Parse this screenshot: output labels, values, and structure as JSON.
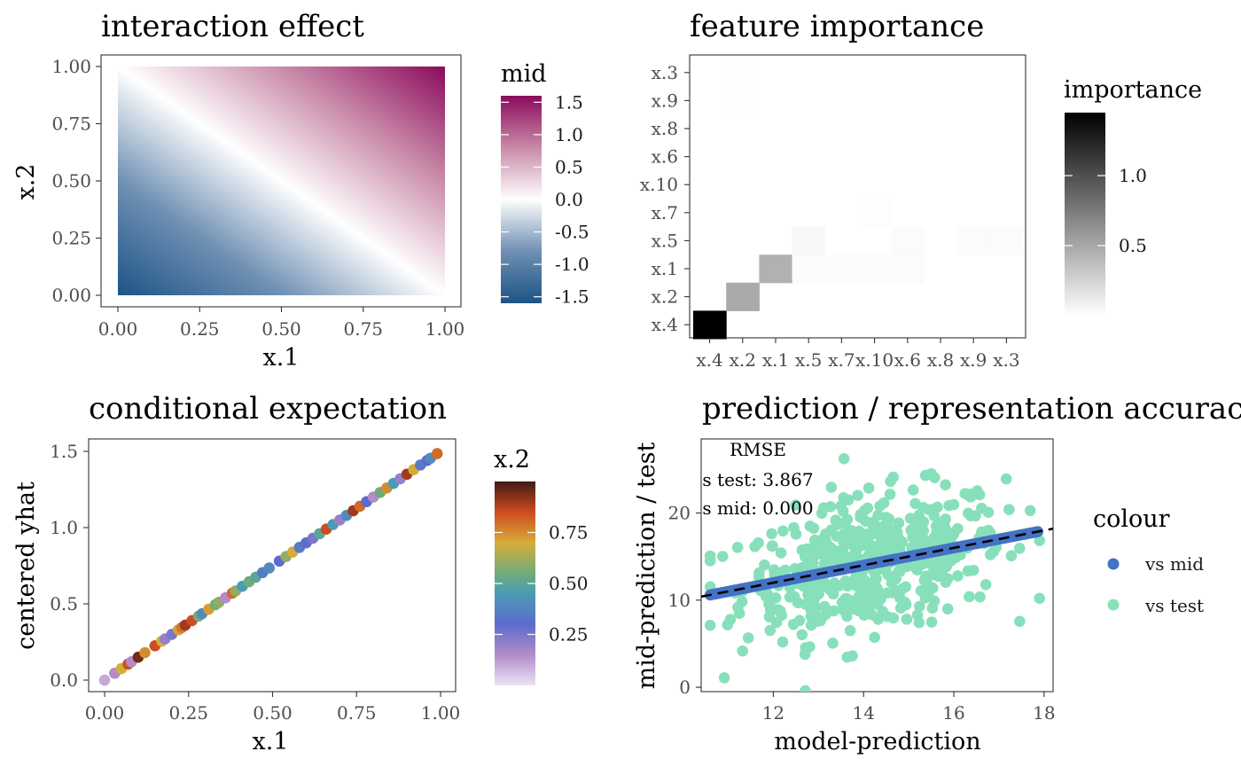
{
  "chart_data": [
    {
      "type": "heatmap",
      "title": "interaction effect",
      "xlabel": "x.1",
      "ylabel": "x.2",
      "xlim": [
        0,
        1
      ],
      "ylim": [
        0,
        1
      ],
      "x_ticks": [
        "0.00",
        "0.25",
        "0.50",
        "0.75",
        "1.00"
      ],
      "y_ticks": [
        "0.00",
        "0.25",
        "0.50",
        "0.75",
        "1.00"
      ],
      "value_formula": "mid = x.1 + x.2 - 1 (approximately, ranging -1.6 to 1.6)",
      "value_range": [
        -1.6,
        1.6
      ],
      "legend": {
        "title": "mid",
        "ticks": [
          "1.5",
          "1.0",
          "0.5",
          "0.0",
          "-0.5",
          "-1.0",
          "-1.5"
        ],
        "tick_values": [
          1.5,
          1.0,
          0.5,
          0.0,
          -0.5,
          -1.0,
          -1.5
        ],
        "colors": {
          "low": "#1d5486",
          "mid": "#ffffff",
          "high": "#8b0a5c"
        }
      }
    },
    {
      "type": "heatmap",
      "title": "feature importance",
      "x_categories": [
        "x.4",
        "x.2",
        "x.1",
        "x.5",
        "x.7",
        "x.10",
        "x.6",
        "x.8",
        "x.9",
        "x.3"
      ],
      "y_categories": [
        "x.4",
        "x.2",
        "x.1",
        "x.5",
        "x.7",
        "x.10",
        "x.6",
        "x.8",
        "x.9",
        "x.3"
      ],
      "cells": [
        {
          "x": "x.4",
          "y": "x.4",
          "value": 1.45
        },
        {
          "x": "x.2",
          "y": "x.2",
          "value": 0.4
        },
        {
          "x": "x.1",
          "y": "x.1",
          "value": 0.36
        },
        {
          "x": "x.5",
          "y": "x.5",
          "value": 0.02
        },
        {
          "x": "x.10",
          "y": "x.1",
          "value": 0.01
        },
        {
          "x": "x.7",
          "y": "x.1",
          "value": 0.01
        },
        {
          "x": "x.5",
          "y": "x.1",
          "value": 0.01
        },
        {
          "x": "x.6",
          "y": "x.1",
          "value": 0.01
        },
        {
          "x": "x.6",
          "y": "x.5",
          "value": 0.01
        },
        {
          "x": "x.9",
          "y": "x.5",
          "value": 0.01
        },
        {
          "x": "x.3",
          "y": "x.5",
          "value": 0.01
        },
        {
          "x": "x.2",
          "y": "x.9",
          "value": 0.005
        },
        {
          "x": "x.2",
          "y": "x.3",
          "value": 0.005
        },
        {
          "x": "x.10",
          "y": "x.7",
          "value": 0.005
        }
      ],
      "legend": {
        "title": "importance",
        "ticks": [
          "1.0",
          "0.5"
        ],
        "tick_values": [
          1.0,
          0.5
        ],
        "range": [
          0,
          1.45
        ],
        "colors": {
          "low": "#ffffff",
          "high": "#000000"
        }
      }
    },
    {
      "type": "scatter",
      "title": "conditional expectation",
      "xlabel": "x.1",
      "ylabel": "centered yhat",
      "xlim": [
        0,
        1
      ],
      "ylim": [
        0,
        1.5
      ],
      "x_ticks": [
        "0.00",
        "0.25",
        "0.50",
        "0.75",
        "1.00"
      ],
      "y_ticks": [
        "0.0",
        "0.5",
        "1.0",
        "1.5"
      ],
      "relation": "y = 1.5 * x.1 (points lie on a line, colored by x.2)",
      "points_x": [
        0.0,
        0.03,
        0.05,
        0.07,
        0.08,
        0.1,
        0.12,
        0.15,
        0.17,
        0.18,
        0.2,
        0.22,
        0.23,
        0.24,
        0.26,
        0.28,
        0.29,
        0.31,
        0.33,
        0.34,
        0.36,
        0.38,
        0.39,
        0.41,
        0.43,
        0.45,
        0.47,
        0.49,
        0.52,
        0.54,
        0.56,
        0.58,
        0.6,
        0.62,
        0.64,
        0.66,
        0.68,
        0.7,
        0.72,
        0.74,
        0.76,
        0.78,
        0.8,
        0.82,
        0.84,
        0.86,
        0.88,
        0.9,
        0.92,
        0.94,
        0.96,
        0.97,
        0.99
      ],
      "points_color_value": [
        0.1,
        0.15,
        0.7,
        0.85,
        0.15,
        0.95,
        0.75,
        0.85,
        0.7,
        0.2,
        0.25,
        0.72,
        0.78,
        0.9,
        0.85,
        0.55,
        0.4,
        0.72,
        0.55,
        0.6,
        0.15,
        0.8,
        0.6,
        0.45,
        0.55,
        0.5,
        0.35,
        0.4,
        0.3,
        0.6,
        0.7,
        0.35,
        0.3,
        0.25,
        0.5,
        0.85,
        0.45,
        0.2,
        0.4,
        0.9,
        0.8,
        0.3,
        0.15,
        0.55,
        0.75,
        0.45,
        0.2,
        0.9,
        0.7,
        0.35,
        0.3,
        0.4,
        0.8
      ],
      "legend": {
        "title": "x.2",
        "ticks": [
          "0.75",
          "0.50",
          "0.25"
        ],
        "tick_values": [
          0.75,
          0.5,
          0.25
        ],
        "range": [
          0,
          1
        ]
      }
    },
    {
      "type": "scatter",
      "title": "prediction / representation accuracy",
      "xlabel": "model-prediction",
      "ylabel": "mid-prediction / test",
      "xlim": [
        10.4,
        18.2
      ],
      "ylim": [
        -0.5,
        28.5
      ],
      "x_ticks": [
        "12",
        "14",
        "16",
        "18"
      ],
      "y_ticks": [
        "0",
        "10",
        "20"
      ],
      "annotation": [
        "RMSE",
        "s test: 3.867",
        "s mid: 0.000"
      ],
      "series": [
        {
          "name": "vs mid",
          "color": "#4472c4",
          "relation": "y = x (identity), x from 10.6 to 17.9"
        },
        {
          "name": "vs test",
          "color": "#88e0bb",
          "relation": "noisy around y = x, RMSE 3.867"
        }
      ],
      "reference_line": {
        "style": "dashed",
        "color": "#000000",
        "slope": 1,
        "intercept": 0
      },
      "legend": {
        "title": "colour",
        "labels": [
          "vs mid",
          "vs test"
        ]
      }
    }
  ]
}
